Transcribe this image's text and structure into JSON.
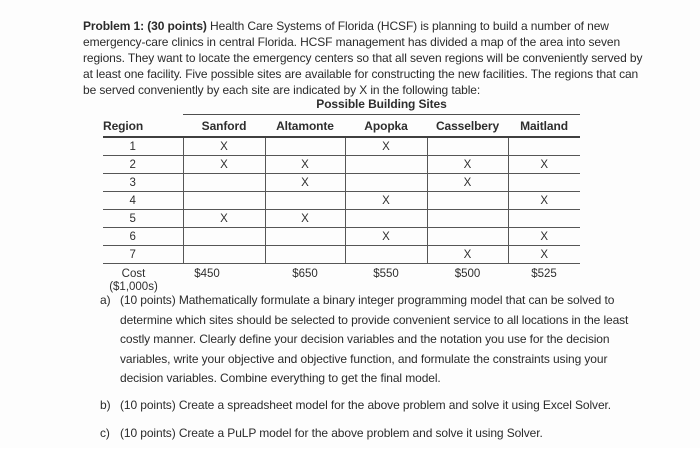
{
  "document": {
    "problem_label": "Problem 1: (30 points)",
    "problem_text": " Health Care Systems of Florida (HCSF) is planning to build a number of new emergency-care clinics in central Florida. HCSF management has divided a map of the area into seven regions. They want to locate the emergency centers so that all seven regions will be conveniently served by at least one facility. Five possible sites are available for constructing the new facilities. The regions that can be served conveniently by each site are indicated by X in the following table:",
    "table": {
      "title": "Possible Building Sites",
      "region_header": "Region",
      "site_headers": [
        "Sanford",
        "Altamonte",
        "Apopka",
        "Casselbery",
        "Maitland"
      ],
      "rows": [
        {
          "region": "1",
          "marks": [
            "X",
            "",
            "X",
            "",
            ""
          ]
        },
        {
          "region": "2",
          "marks": [
            "X",
            "X",
            "",
            "X",
            "X"
          ]
        },
        {
          "region": "3",
          "marks": [
            "",
            "X",
            "",
            "X",
            ""
          ]
        },
        {
          "region": "4",
          "marks": [
            "",
            "",
            "X",
            "",
            "X"
          ]
        },
        {
          "region": "5",
          "marks": [
            "X",
            "X",
            "",
            "",
            ""
          ]
        },
        {
          "region": "6",
          "marks": [
            "",
            "",
            "X",
            "",
            "X"
          ]
        },
        {
          "region": "7",
          "marks": [
            "",
            "",
            "",
            "X",
            "X"
          ]
        }
      ],
      "cost_label": "Cost",
      "cost_unit": "($1,000s)",
      "costs": [
        "$450",
        "$650",
        "$550",
        "$500",
        "$525"
      ]
    },
    "parts": [
      {
        "label": "a)",
        "text": "(10 points) Mathematically formulate a binary integer programming model that can be solved to determine which sites should be selected to provide convenient service to all locations in the least costly manner. Clearly define your decision variables and the notation you use for the decision variables, write your objective and objective function, and formulate the constraints using your decision variables. Combine everything to get the final model."
      },
      {
        "label": "b)",
        "text": "(10 points) Create a spreadsheet model for the above problem and solve it using Excel Solver."
      },
      {
        "label": "c)",
        "text": "(10 points) Create a PuLP model for the above problem and solve it using Solver."
      }
    ]
  }
}
